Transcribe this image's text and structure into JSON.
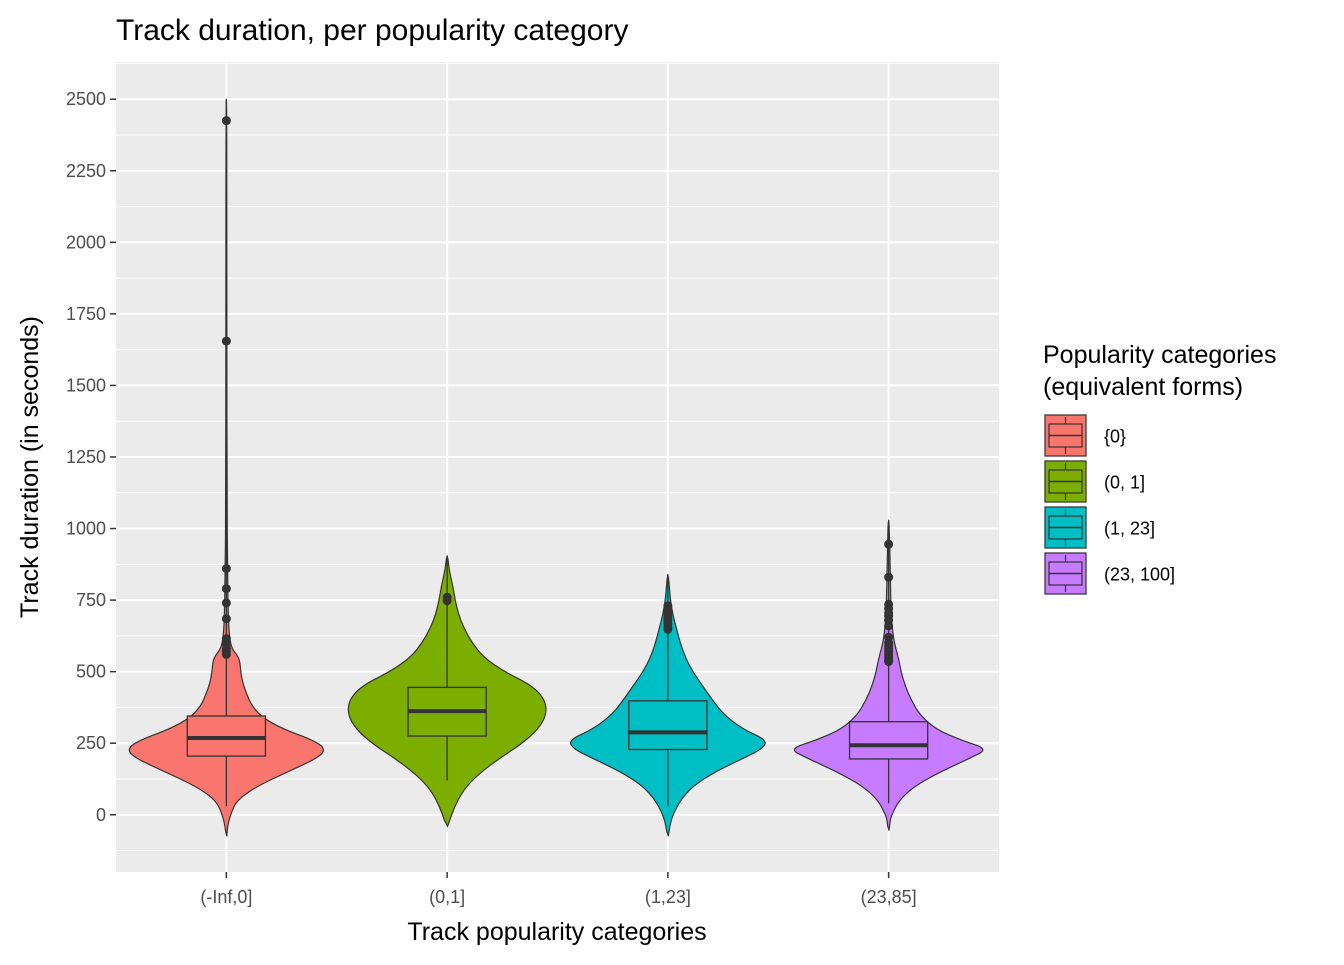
{
  "chart_data": {
    "type": "violin",
    "title": "Track duration, per popularity category",
    "xlabel": "Track popularity categories",
    "ylabel": "Track duration (in seconds)",
    "ylim": [
      -200,
      2630
    ],
    "yticks": [
      0,
      250,
      500,
      750,
      1000,
      1250,
      1500,
      1750,
      2000,
      2250,
      2500
    ],
    "grid": true,
    "legend": {
      "title_lines": [
        "Popularity categories",
        "(equivalent forms)"
      ],
      "position": "right",
      "entries": [
        {
          "label": "{0}",
          "color": "#F8766D"
        },
        {
          "label": "(0, 1]",
          "color": "#7CAE00"
        },
        {
          "label": "(1, 23]",
          "color": "#00BFC4"
        },
        {
          "label": "(23, 100]",
          "color": "#C77CFF"
        }
      ]
    },
    "categories": [
      "(-Inf,0]",
      "(0,1]",
      "(1,23]",
      "(23,85]"
    ],
    "series": [
      {
        "category": "(-Inf,0]",
        "color": "#F8766D",
        "q1": 205,
        "median": 268,
        "q3": 345,
        "whisker_low": 30,
        "whisker_high": 555,
        "outliers": [
          2425,
          1655,
          860,
          790,
          740,
          685,
          615,
          595,
          580,
          570,
          560
        ],
        "violin_min": -75,
        "violin_max": 2500,
        "density": [
          [
            -75,
            0.004
          ],
          [
            -40,
            0.012
          ],
          [
            0,
            0.04
          ],
          [
            50,
            0.1
          ],
          [
            100,
            0.3
          ],
          [
            150,
            0.6
          ],
          [
            200,
            0.9
          ],
          [
            230,
            0.97
          ],
          [
            260,
            0.85
          ],
          [
            300,
            0.55
          ],
          [
            340,
            0.35
          ],
          [
            380,
            0.25
          ],
          [
            420,
            0.2
          ],
          [
            460,
            0.16
          ],
          [
            500,
            0.14
          ],
          [
            540,
            0.13
          ],
          [
            560,
            0.1
          ],
          [
            580,
            0.055
          ],
          [
            620,
            0.03
          ],
          [
            700,
            0.018
          ],
          [
            850,
            0.012
          ],
          [
            1100,
            0.006
          ],
          [
            1700,
            0.005
          ],
          [
            2500,
            0.004
          ]
        ]
      },
      {
        "category": "(0,1]",
        "color": "#7CAE00",
        "q1": 275,
        "median": 362,
        "q3": 445,
        "whisker_low": 120,
        "whisker_high": 645,
        "outliers": [
          760,
          748
        ],
        "violin_min": -40,
        "violin_max": 905,
        "density": [
          [
            -40,
            0.004
          ],
          [
            0,
            0.04
          ],
          [
            50,
            0.09
          ],
          [
            100,
            0.17
          ],
          [
            150,
            0.3
          ],
          [
            200,
            0.47
          ],
          [
            250,
            0.66
          ],
          [
            300,
            0.8
          ],
          [
            350,
            0.87
          ],
          [
            400,
            0.86
          ],
          [
            450,
            0.75
          ],
          [
            500,
            0.5
          ],
          [
            550,
            0.32
          ],
          [
            600,
            0.22
          ],
          [
            650,
            0.15
          ],
          [
            700,
            0.1
          ],
          [
            750,
            0.07
          ],
          [
            800,
            0.05
          ],
          [
            850,
            0.02
          ],
          [
            905,
            0.004
          ]
        ]
      },
      {
        "category": "(1,23]",
        "color": "#00BFC4",
        "q1": 228,
        "median": 288,
        "q3": 398,
        "whisker_low": 30,
        "whisker_high": 670,
        "outliers": [
          730,
          720,
          710,
          700,
          690,
          680,
          668,
          655,
          648
        ],
        "violin_min": -75,
        "violin_max": 840,
        "density": [
          [
            -75,
            0.004
          ],
          [
            -40,
            0.015
          ],
          [
            0,
            0.04
          ],
          [
            50,
            0.1
          ],
          [
            100,
            0.2
          ],
          [
            150,
            0.38
          ],
          [
            200,
            0.62
          ],
          [
            230,
            0.76
          ],
          [
            260,
            0.8
          ],
          [
            300,
            0.6
          ],
          [
            350,
            0.45
          ],
          [
            400,
            0.36
          ],
          [
            450,
            0.28
          ],
          [
            500,
            0.2
          ],
          [
            550,
            0.14
          ],
          [
            600,
            0.1
          ],
          [
            650,
            0.07
          ],
          [
            700,
            0.04
          ],
          [
            750,
            0.02
          ],
          [
            840,
            0.004
          ]
        ]
      },
      {
        "category": "(23,85]",
        "color": "#C77CFF",
        "q1": 195,
        "median": 243,
        "q3": 325,
        "whisker_low": 40,
        "whisker_high": 525,
        "outliers": [
          945,
          830,
          735,
          720,
          705,
          695,
          680,
          660,
          620,
          600,
          590,
          580,
          570,
          560,
          550,
          540,
          535
        ],
        "violin_min": -55,
        "violin_max": 1030,
        "density": [
          [
            -55,
            0.004
          ],
          [
            -20,
            0.015
          ],
          [
            0,
            0.03
          ],
          [
            50,
            0.1
          ],
          [
            100,
            0.25
          ],
          [
            150,
            0.5
          ],
          [
            200,
            0.8
          ],
          [
            230,
            0.96
          ],
          [
            260,
            0.7
          ],
          [
            300,
            0.45
          ],
          [
            350,
            0.3
          ],
          [
            400,
            0.22
          ],
          [
            450,
            0.16
          ],
          [
            500,
            0.12
          ],
          [
            540,
            0.1
          ],
          [
            580,
            0.07
          ],
          [
            620,
            0.045
          ],
          [
            700,
            0.025
          ],
          [
            800,
            0.018
          ],
          [
            950,
            0.01
          ],
          [
            1030,
            0.004
          ]
        ]
      }
    ]
  }
}
